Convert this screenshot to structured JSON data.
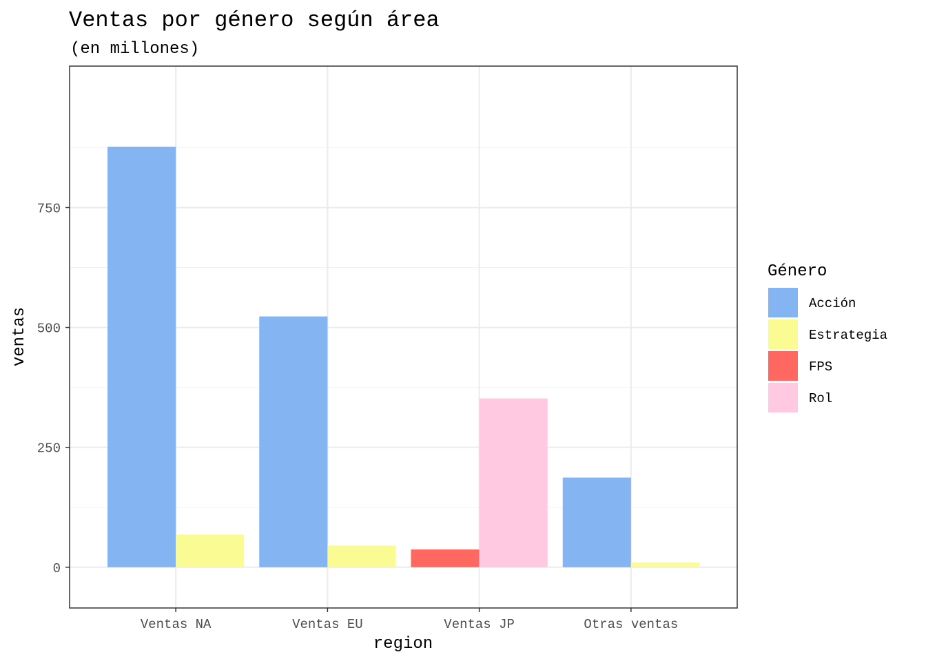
{
  "chart_data": {
    "type": "bar",
    "title": "Ventas por género según área",
    "subtitle": "(en millones)",
    "xlabel": "region",
    "ylabel": "ventas",
    "ylim": [
      -85,
      1045
    ],
    "yticks": [
      0,
      250,
      500,
      750
    ],
    "grid": true,
    "legend_position": "right",
    "legend_title": "Género",
    "categories": [
      "Ventas NA",
      "Ventas EU",
      "Ventas JP",
      "Otras ventas"
    ],
    "series": [
      {
        "name": "Acción",
        "color": "#85B4F2",
        "values": [
          877,
          523,
          null,
          187
        ]
      },
      {
        "name": "Estrategia",
        "color": "#FBFB93",
        "values": [
          68,
          45,
          null,
          10
        ]
      },
      {
        "name": "FPS",
        "color": "#FF6860",
        "values": [
          null,
          null,
          37,
          null
        ]
      },
      {
        "name": "Rol",
        "color": "#FFC9E1",
        "values": [
          null,
          null,
          352,
          null
        ]
      }
    ]
  }
}
